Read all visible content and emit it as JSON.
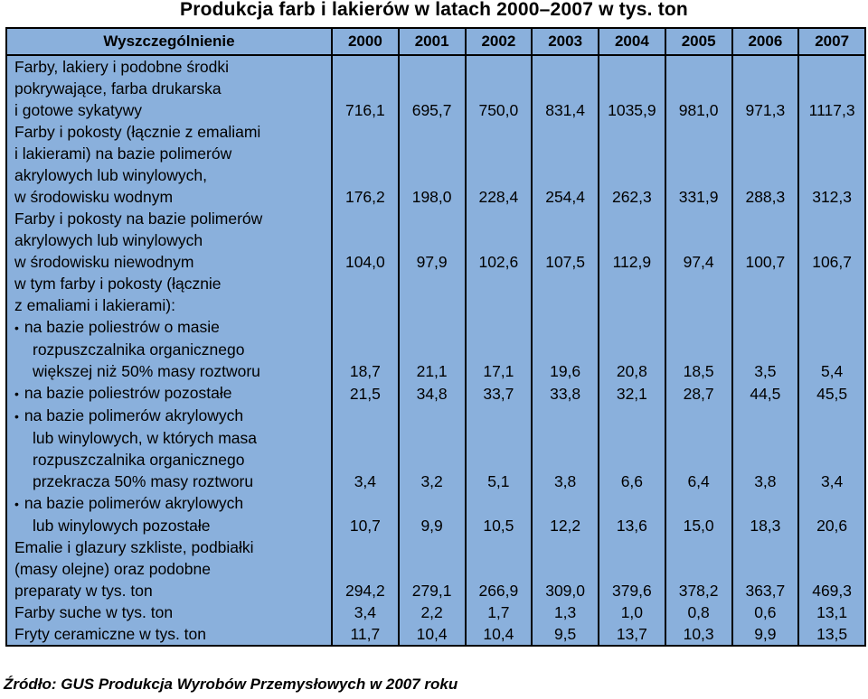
{
  "title": "Produkcja farb i lakierów w latach 2000–2007 w tys. ton",
  "header": [
    "Wyszczególnienie",
    "2000",
    "2001",
    "2002",
    "2003",
    "2004",
    "2005",
    "2006",
    "2007"
  ],
  "rows": [
    {
      "lines": [
        "Farby, lakiery i podobne środki",
        "pokrywające, farba drukarska",
        "i gotowe sykatywy"
      ],
      "values": [
        "716,1",
        "695,7",
        "750,0",
        "831,4",
        "1035,9",
        "981,0",
        "971,3",
        "1117,3"
      ]
    },
    {
      "lines": [
        "Farby i pokosty (łącznie z emaliami",
        "i lakierami) na bazie polimerów",
        "akrylowych lub winylowych,",
        "w środowisku wodnym"
      ],
      "values": [
        "176,2",
        "198,0",
        "228,4",
        "254,4",
        "262,3",
        "331,9",
        "288,3",
        "312,3"
      ]
    },
    {
      "lines": [
        "Farby i pokosty na bazie polimerów",
        "akrylowych lub winylowych",
        "w środowisku niewodnym"
      ],
      "values": [
        "104,0",
        "97,9",
        "102,6",
        "107,5",
        "112,9",
        "97,4",
        "100,7",
        "106,7"
      ]
    },
    {
      "lines": [
        "w tym farby i pokosty (łącznie",
        "z emaliami i lakierami):"
      ],
      "values": [
        "",
        "",
        "",
        "",
        "",
        "",
        "",
        ""
      ]
    },
    {
      "lines": [
        "na  bazie poliestrów o masie",
        "rozpuszczalnika organicznego",
        "większej niż 50% masy roztworu"
      ],
      "bullet": true,
      "values": [
        "18,7",
        "21,1",
        "17,1",
        "19,6",
        "20,8",
        "18,5",
        "3,5",
        "5,4"
      ]
    },
    {
      "lines": [
        "na bazie poliestrów pozostałe"
      ],
      "bullet": true,
      "values": [
        "21,5",
        "34,8",
        "33,7",
        "33,8",
        "32,1",
        "28,7",
        "44,5",
        "45,5"
      ]
    },
    {
      "lines": [
        "na bazie polimerów akrylowych",
        "lub winylowych, w których masa",
        "rozpuszczalnika organicznego",
        "przekracza 50% masy roztworu"
      ],
      "bullet": true,
      "values": [
        "3,4",
        "3,2",
        "5,1",
        "3,8",
        "6,6",
        "6,4",
        "3,8",
        "3,4"
      ]
    },
    {
      "lines": [
        "na bazie polimerów akrylowych",
        "lub winylowych pozostałe"
      ],
      "bullet": true,
      "values": [
        "10,7",
        "9,9",
        "10,5",
        "12,2",
        "13,6",
        "15,0",
        "18,3",
        "20,6"
      ]
    },
    {
      "lines": [
        "Emalie i glazury szkliste, podbiałki",
        "(masy olejne) oraz podobne",
        "preparaty w tys. ton"
      ],
      "values": [
        "294,2",
        "279,1",
        "266,9",
        "309,0",
        "379,6",
        "378,2",
        "363,7",
        "469,3"
      ]
    },
    {
      "lines": [
        "Farby suche w tys. ton"
      ],
      "values": [
        "3,4",
        "2,2",
        "1,7",
        "1,3",
        "1,0",
        "0,8",
        "0,6",
        "13,1"
      ]
    },
    {
      "lines": [
        "Fryty ceramiczne w tys. ton"
      ],
      "values": [
        "11,7",
        "10,4",
        "10,4",
        "9,5",
        "13,7",
        "10,3",
        "9,9",
        "13,5"
      ]
    }
  ],
  "footer": "Źródło: GUS  Produkcja Wyrobów Przemysłowych w 2007 roku"
}
